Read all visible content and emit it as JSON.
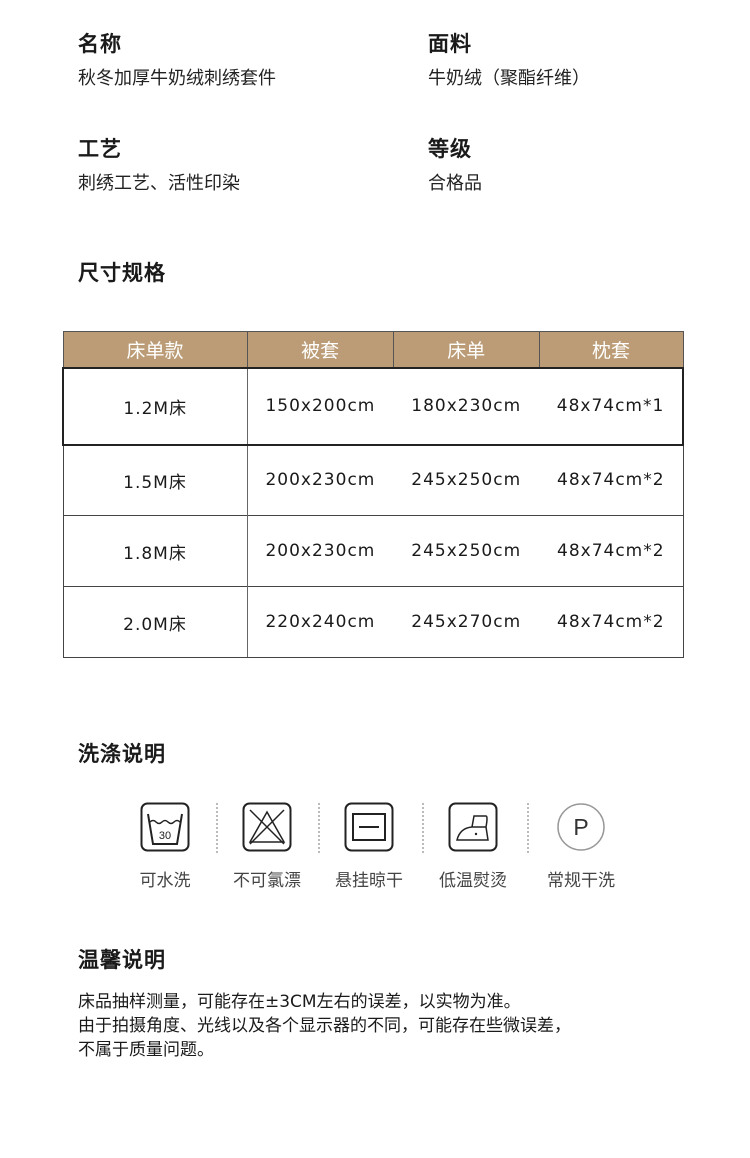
{
  "info": [
    {
      "label": "名称",
      "value": "秋冬加厚牛奶绒刺绣套件"
    },
    {
      "label": "面料",
      "value": "牛奶绒（聚酯纤维）"
    },
    {
      "label": "工艺",
      "value": "刺绣工艺、活性印染"
    },
    {
      "label": "等级",
      "value": "合格品"
    }
  ],
  "size_title": "尺寸规格",
  "table": {
    "header_color": "#bb9c76",
    "headers": [
      "床单款",
      "被套",
      "床单",
      "枕套"
    ],
    "rows": [
      [
        "1.2M床",
        "150x200cm",
        "180x230cm",
        "48x74cm*1"
      ],
      [
        "1.5M床",
        "200x230cm",
        "245x250cm",
        "48x74cm*2"
      ],
      [
        "1.8M床",
        "200x230cm",
        "245x250cm",
        "48x74cm*2"
      ],
      [
        "2.0M床",
        "220x240cm",
        "245x270cm",
        "48x74cm*2"
      ]
    ]
  },
  "care_title": "洗涤说明",
  "care": [
    {
      "icon": "wash-30-icon",
      "label": "可水洗",
      "temp": "30"
    },
    {
      "icon": "no-bleach-icon",
      "label": "不可氯漂"
    },
    {
      "icon": "hang-dry-icon",
      "label": "悬挂晾干"
    },
    {
      "icon": "low-iron-icon",
      "label": "低温熨烫"
    },
    {
      "icon": "dry-clean-p-icon",
      "label": "常规干洗",
      "letter": "P"
    }
  ],
  "notes_title": "温馨说明",
  "notes": [
    "床品抽样测量，可能存在±3CM左右的误差，以实物为准。",
    "由于拍摄角度、光线以及各个显示器的不同，可能存在些微误差，",
    "不属于质量问题。"
  ]
}
